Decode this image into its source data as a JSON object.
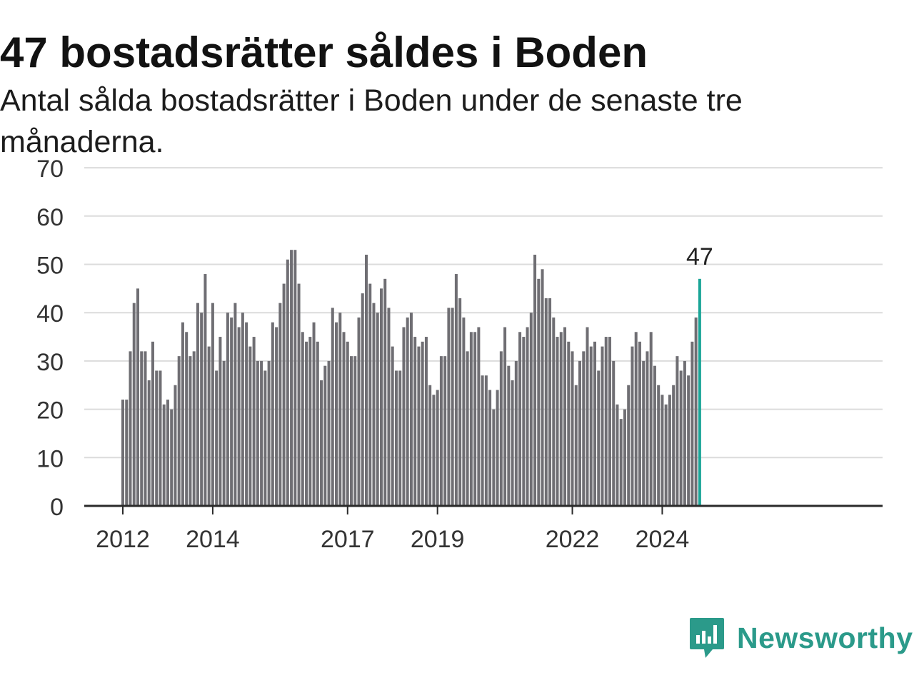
{
  "title": "47 bostadsrätter såldes i Boden",
  "subtitle": "Antal sålda bostadsrätter i Boden under de senaste tre månaderna.",
  "brand": {
    "name": "Newsworthy",
    "icon": "newsworthy-logo-icon"
  },
  "colors": {
    "bar": "#6f6e73",
    "highlight": "#1aa597",
    "grid": "#dcdcdc",
    "axis": "#2a2a2a",
    "text": "#333333"
  },
  "chart_data": {
    "type": "bar",
    "title": "47 bostadsrätter såldes i Boden",
    "xlabel": "",
    "ylabel": "",
    "ylim": [
      0,
      70
    ],
    "yticks": [
      0,
      10,
      20,
      30,
      40,
      50,
      60,
      70
    ],
    "xticks": [
      {
        "label": "2012",
        "index": 0
      },
      {
        "label": "2014",
        "index": 24
      },
      {
        "label": "2017",
        "index": 60
      },
      {
        "label": "2019",
        "index": 84
      },
      {
        "label": "2022",
        "index": 120
      },
      {
        "label": "2024",
        "index": 144
      }
    ],
    "grid": true,
    "highlight_label": "47",
    "values": [
      22,
      22,
      32,
      42,
      45,
      32,
      32,
      26,
      34,
      28,
      28,
      21,
      22,
      20,
      25,
      31,
      38,
      36,
      31,
      32,
      42,
      40,
      48,
      33,
      42,
      28,
      35,
      30,
      40,
      39,
      42,
      37,
      40,
      38,
      33,
      35,
      30,
      30,
      28,
      30,
      38,
      37,
      42,
      46,
      51,
      53,
      53,
      46,
      36,
      34,
      35,
      38,
      34,
      26,
      29,
      30,
      41,
      38,
      40,
      36,
      34,
      31,
      31,
      39,
      44,
      52,
      46,
      42,
      40,
      45,
      47,
      41,
      33,
      28,
      28,
      37,
      39,
      40,
      35,
      33,
      34,
      35,
      25,
      23,
      24,
      31,
      31,
      41,
      41,
      48,
      43,
      39,
      32,
      36,
      36,
      37,
      27,
      27,
      24,
      20,
      24,
      32,
      37,
      29,
      26,
      30,
      36,
      35,
      37,
      40,
      52,
      47,
      49,
      43,
      43,
      39,
      35,
      36,
      37,
      34,
      32,
      25,
      30,
      32,
      37,
      33,
      34,
      28,
      33,
      35,
      35,
      30,
      21,
      18,
      20,
      25,
      33,
      36,
      34,
      30,
      32,
      36,
      29,
      25,
      23,
      21,
      23,
      25,
      31,
      28,
      30,
      27,
      34,
      39,
      47
    ]
  }
}
